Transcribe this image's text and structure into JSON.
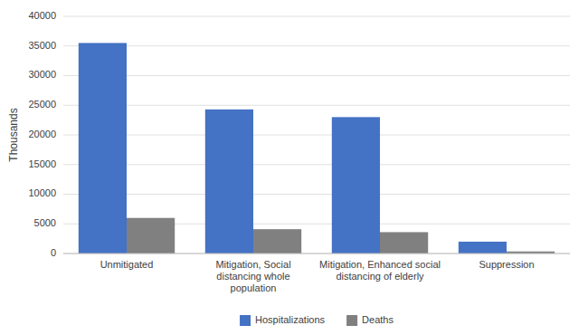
{
  "chart_data": {
    "type": "bar",
    "categories": [
      "Unmitigated",
      "Mitigation, Social\ndistancing whole\npopulation",
      "Mitigation, Enhanced social\ndistancing of elderly",
      "Suppression"
    ],
    "series": [
      {
        "name": "Hospitalizations",
        "color": "#4472C4",
        "values": [
          35500,
          24300,
          23000,
          2000
        ]
      },
      {
        "name": "Deaths",
        "color": "#808080",
        "values": [
          6000,
          4100,
          3600,
          350
        ]
      }
    ],
    "ylabel": "Thousands",
    "ylim": [
      0,
      40000
    ],
    "yticks": [
      0,
      5000,
      10000,
      15000,
      20000,
      25000,
      30000,
      35000,
      40000
    ],
    "grid": true,
    "legend": "bottom"
  }
}
